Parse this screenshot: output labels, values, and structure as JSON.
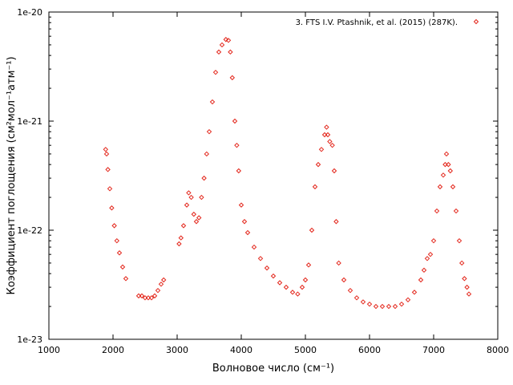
{
  "chart_data": {
    "type": "scatter",
    "xlabel": "Волновое число (см⁻¹)",
    "ylabel": "Коэффициент поглощения (см²мол⁻¹атм⁻¹)",
    "xlim": [
      1000,
      8000
    ],
    "ylim": [
      1e-23,
      1e-20
    ],
    "yscale": "log",
    "x_ticks": [
      1000,
      2000,
      3000,
      4000,
      5000,
      6000,
      7000,
      8000
    ],
    "x_tick_labels": [
      "1000",
      "2000",
      "3000",
      "4000",
      "5000",
      "6000",
      "7000",
      "8000"
    ],
    "y_ticks": [
      1e-20,
      1e-21,
      1e-22,
      1e-23
    ],
    "y_tick_labels": [
      "1e-20",
      "1e-21",
      "1e-22",
      "1e-23"
    ],
    "grid": false,
    "legend": "top-right",
    "colors": {
      "series": "#e3261b"
    },
    "series": [
      {
        "name": "3. FTS I.V. Ptashnik, et al. (2015) (287K).",
        "marker": "diamond",
        "points": [
          [
            1885,
            5.5e-22
          ],
          [
            1900,
            5e-22
          ],
          [
            1920,
            3.6e-22
          ],
          [
            1950,
            2.4e-22
          ],
          [
            1980,
            1.6e-22
          ],
          [
            2020,
            1.1e-22
          ],
          [
            2060,
            8e-23
          ],
          [
            2100,
            6.2e-23
          ],
          [
            2150,
            4.6e-23
          ],
          [
            2200,
            3.6e-23
          ],
          [
            2400,
            2.5e-23
          ],
          [
            2450,
            2.5e-23
          ],
          [
            2500,
            2.4e-23
          ],
          [
            2550,
            2.4e-23
          ],
          [
            2600,
            2.4e-23
          ],
          [
            2650,
            2.5e-23
          ],
          [
            2700,
            2.8e-23
          ],
          [
            2750,
            3.2e-23
          ],
          [
            2790,
            3.5e-23
          ],
          [
            3030,
            7.5e-23
          ],
          [
            3060,
            8.5e-23
          ],
          [
            3100,
            1.1e-22
          ],
          [
            3150,
            1.7e-22
          ],
          [
            3180,
            2.2e-22
          ],
          [
            3220,
            2e-22
          ],
          [
            3260,
            1.4e-22
          ],
          [
            3300,
            1.2e-22
          ],
          [
            3340,
            1.3e-22
          ],
          [
            3380,
            2e-22
          ],
          [
            3420,
            3e-22
          ],
          [
            3460,
            5e-22
          ],
          [
            3500,
            8e-22
          ],
          [
            3550,
            1.5e-21
          ],
          [
            3600,
            2.8e-21
          ],
          [
            3650,
            4.3e-21
          ],
          [
            3700,
            5e-21
          ],
          [
            3760,
            5.6e-21
          ],
          [
            3800,
            5.5e-21
          ],
          [
            3830,
            4.3e-21
          ],
          [
            3860,
            2.5e-21
          ],
          [
            3900,
            1e-21
          ],
          [
            3930,
            6e-22
          ],
          [
            3960,
            3.5e-22
          ],
          [
            4000,
            1.7e-22
          ],
          [
            4050,
            1.2e-22
          ],
          [
            4100,
            9.5e-23
          ],
          [
            4200,
            7e-23
          ],
          [
            4300,
            5.5e-23
          ],
          [
            4400,
            4.5e-23
          ],
          [
            4500,
            3.8e-23
          ],
          [
            4600,
            3.3e-23
          ],
          [
            4700,
            3e-23
          ],
          [
            4800,
            2.7e-23
          ],
          [
            4880,
            2.6e-23
          ],
          [
            4950,
            3e-23
          ],
          [
            5000,
            3.5e-23
          ],
          [
            5050,
            4.8e-23
          ],
          [
            5100,
            1e-22
          ],
          [
            5150,
            2.5e-22
          ],
          [
            5200,
            4e-22
          ],
          [
            5250,
            5.5e-22
          ],
          [
            5300,
            7.5e-22
          ],
          [
            5330,
            8.8e-22
          ],
          [
            5350,
            7.5e-22
          ],
          [
            5380,
            6.5e-22
          ],
          [
            5420,
            6e-22
          ],
          [
            5450,
            3.5e-22
          ],
          [
            5480,
            1.2e-22
          ],
          [
            5520,
            5e-23
          ],
          [
            5600,
            3.5e-23
          ],
          [
            5700,
            2.8e-23
          ],
          [
            5800,
            2.4e-23
          ],
          [
            5900,
            2.2e-23
          ],
          [
            6000,
            2.1e-23
          ],
          [
            6100,
            2e-23
          ],
          [
            6200,
            2e-23
          ],
          [
            6300,
            2e-23
          ],
          [
            6400,
            2e-23
          ],
          [
            6500,
            2.1e-23
          ],
          [
            6600,
            2.3e-23
          ],
          [
            6700,
            2.7e-23
          ],
          [
            6800,
            3.5e-23
          ],
          [
            6850,
            4.3e-23
          ],
          [
            6900,
            5.5e-23
          ],
          [
            6950,
            6e-23
          ],
          [
            7000,
            8e-23
          ],
          [
            7050,
            1.5e-22
          ],
          [
            7100,
            2.5e-22
          ],
          [
            7150,
            3.2e-22
          ],
          [
            7180,
            4e-22
          ],
          [
            7200,
            5e-22
          ],
          [
            7230,
            4e-22
          ],
          [
            7260,
            3.5e-22
          ],
          [
            7300,
            2.5e-22
          ],
          [
            7350,
            1.5e-22
          ],
          [
            7400,
            8e-23
          ],
          [
            7440,
            5e-23
          ],
          [
            7480,
            3.6e-23
          ],
          [
            7520,
            3e-23
          ],
          [
            7550,
            2.6e-23
          ]
        ]
      }
    ]
  }
}
